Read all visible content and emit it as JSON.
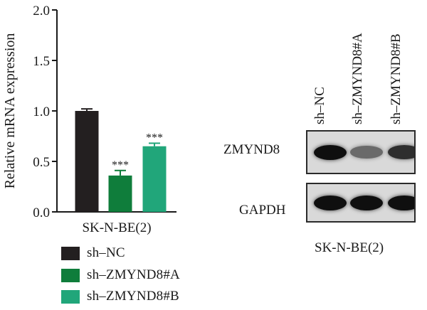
{
  "chart_data": [
    {
      "type": "bar",
      "ylabel": "Relative mRNA expression",
      "xlabel": "SK-N-BE(2)",
      "ylim": [
        0,
        2.0
      ],
      "yticks": [
        "0.0",
        "0.5",
        "1.0",
        "1.5",
        "2.0"
      ],
      "categories": [
        "sh–NC",
        "sh–ZMYND8#A",
        "sh–ZMYND8#B"
      ],
      "values": [
        1.0,
        0.36,
        0.65
      ],
      "errors": [
        0.02,
        0.05,
        0.03
      ],
      "significance": [
        "",
        "***",
        "***"
      ],
      "colors": [
        "#231f20",
        "#0f7d3b",
        "#21a67a"
      ],
      "legend_placement": "bottom"
    }
  ],
  "blot": {
    "lanes": [
      "sh–NC",
      "sh–ZMYND8#A",
      "sh–ZMYND8#B"
    ],
    "rows": [
      {
        "label": "ZMYND8",
        "intensity": [
          1.0,
          0.4,
          0.8
        ]
      },
      {
        "label": "GAPDH",
        "intensity": [
          1.0,
          1.0,
          1.0
        ]
      }
    ],
    "cell_line": "SK-N-BE(2)"
  }
}
